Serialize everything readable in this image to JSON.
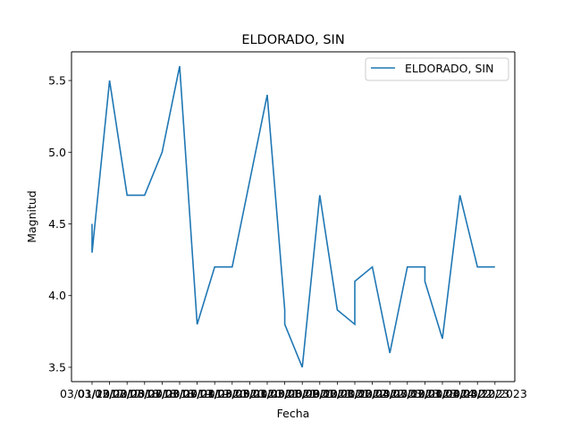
{
  "chart_data": {
    "type": "line",
    "title": "ELDORADO, SIN",
    "xlabel": "Fecha",
    "ylabel": "Magnitud",
    "ylim": [
      3.4,
      5.7
    ],
    "yticks": [
      3.5,
      4.0,
      4.5,
      5.0,
      5.5
    ],
    "ytick_labels": [
      "3.5",
      "4.0",
      "4.5",
      "5.0",
      "5.5"
    ],
    "grid": false,
    "legend": "top-right",
    "x": [
      "03/01/2017",
      "03/01/2017",
      "03/12/2017",
      "03/12/2017",
      "03/12/2017",
      "03/12/2017",
      "03/12/2017",
      "03/02/2018",
      "03/05/2018",
      "03/07/2018",
      "03/03/2019",
      "03/03/2019",
      "03/07/2019",
      "03/03/2020",
      "03/05/2020",
      "03/05/2020",
      "03/03/2021",
      "03/08/2021",
      "03/09/2021",
      "03/09/2021",
      "03/12/2021",
      "03/12/2021",
      "03/01/2022",
      "03/12/2022",
      "03/12/2022",
      "03/12/2022",
      "03/04/2023",
      "03/04/2023",
      "03/04/2023"
    ],
    "xtick_labels": [
      "03/01/2017",
      "03/12/2017",
      "03/02/2018",
      "03/05/2018",
      "03/07/2018",
      "03/03/2019",
      "03/07/2019",
      "03/01/2020",
      "03/03/2020",
      "03/05/2020",
      "03/01/2021",
      "03/03/2021",
      "03/08/2021",
      "03/09/2021",
      "03/12/2021",
      "03/01/2022",
      "03/12/2022",
      "03/04/2023",
      "03/07/2023",
      "03/12/2023",
      "03/01/2024",
      "03/04/2022",
      "03/04/2023",
      "03/12/2023"
    ],
    "series": [
      {
        "name": "ELDORADO, SIN",
        "color": "#1f77b4",
        "points": [
          [
            0,
            4.5
          ],
          [
            0,
            4.3
          ],
          [
            1,
            5.5
          ],
          [
            2,
            4.7
          ],
          [
            3,
            4.7
          ],
          [
            4,
            5.0
          ],
          [
            5,
            5.6
          ],
          [
            6,
            3.8
          ],
          [
            7,
            4.2
          ],
          [
            8,
            4.2
          ],
          [
            10,
            5.4
          ],
          [
            11,
            3.9
          ],
          [
            11,
            3.8
          ],
          [
            12,
            3.5
          ],
          [
            13,
            4.7
          ],
          [
            14,
            3.9
          ],
          [
            15,
            3.8
          ],
          [
            15,
            4.1
          ],
          [
            16,
            4.2
          ],
          [
            17,
            3.6
          ],
          [
            18,
            4.2
          ],
          [
            19,
            4.2
          ],
          [
            19,
            4.1
          ],
          [
            20,
            3.7
          ],
          [
            21,
            4.7
          ],
          [
            22,
            4.2
          ],
          [
            23,
            4.2
          ]
        ]
      }
    ]
  }
}
